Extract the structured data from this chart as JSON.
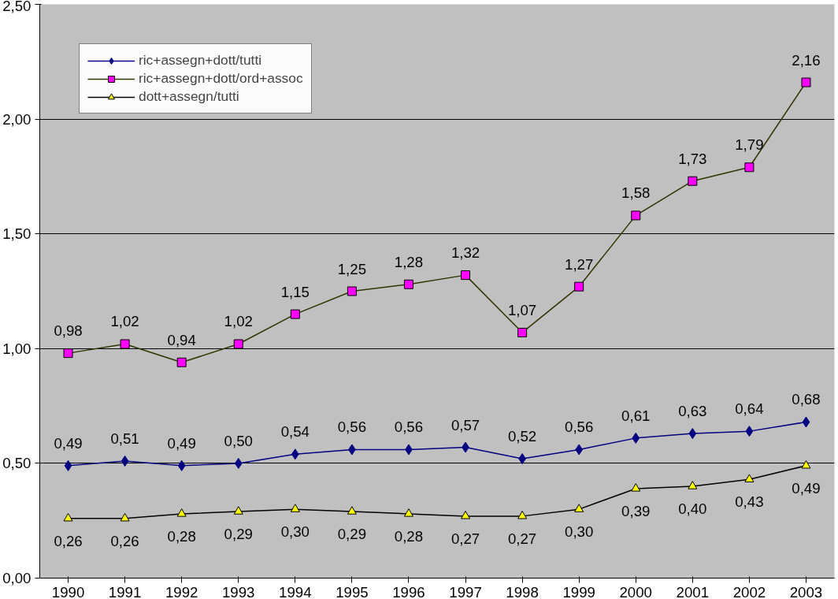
{
  "chart_data": {
    "type": "line",
    "categories": [
      "1990",
      "1991",
      "1992",
      "1993",
      "1994",
      "1995",
      "1996",
      "1997",
      "1998",
      "1999",
      "2000",
      "2001",
      "2002",
      "2003"
    ],
    "series": [
      {
        "name": "ric+assegn+dott/tutti",
        "color": "#000080",
        "marker": "diamond",
        "values": [
          0.49,
          0.51,
          0.49,
          0.5,
          0.54,
          0.56,
          0.56,
          0.57,
          0.52,
          0.56,
          0.61,
          0.63,
          0.64,
          0.68
        ],
        "value_labels": [
          "0,49",
          "0,51",
          "0,49",
          "0,50",
          "0,54",
          "0,56",
          "0,56",
          "0,57",
          "0,52",
          "0,56",
          "0,61",
          "0,63",
          "0,64",
          "0,68"
        ]
      },
      {
        "name": "ric+assegn+dott/ord+assoc",
        "color": "#ff00ff",
        "marker": "square",
        "values": [
          0.98,
          1.02,
          0.94,
          1.02,
          1.15,
          1.25,
          1.28,
          1.32,
          1.07,
          1.27,
          1.58,
          1.73,
          1.79,
          2.16
        ],
        "value_labels": [
          "0,98",
          "1,02",
          "0,94",
          "1,02",
          "1,15",
          "1,25",
          "1,28",
          "1,32",
          "1,07",
          "1,27",
          "1,58",
          "1,73",
          "1,79",
          "2,16"
        ]
      },
      {
        "name": "dott+assegn/tutti",
        "color": "#ffff00",
        "marker": "triangle",
        "values": [
          0.26,
          0.26,
          0.28,
          0.29,
          0.3,
          0.29,
          0.28,
          0.27,
          0.27,
          0.3,
          0.39,
          0.4,
          0.43,
          0.49
        ],
        "value_labels": [
          "0,26",
          "0,26",
          "0,28",
          "0,29",
          "0,30",
          "0,29",
          "0,28",
          "0,27",
          "0,27",
          "0,30",
          "0,39",
          "0,40",
          "0,43",
          "0,49"
        ]
      }
    ],
    "ylim": [
      0,
      2.5
    ],
    "yticks": [
      {
        "value": 0,
        "label": "0,00"
      },
      {
        "value": 0.5,
        "label": "0,50"
      },
      {
        "value": 1,
        "label": "1,00"
      },
      {
        "value": 1.5,
        "label": "1,50"
      },
      {
        "value": 2,
        "label": "2,00"
      },
      {
        "value": 2.5,
        "label": "2,50"
      }
    ],
    "grid": "y",
    "legend": "top left",
    "line_style": "solid"
  }
}
